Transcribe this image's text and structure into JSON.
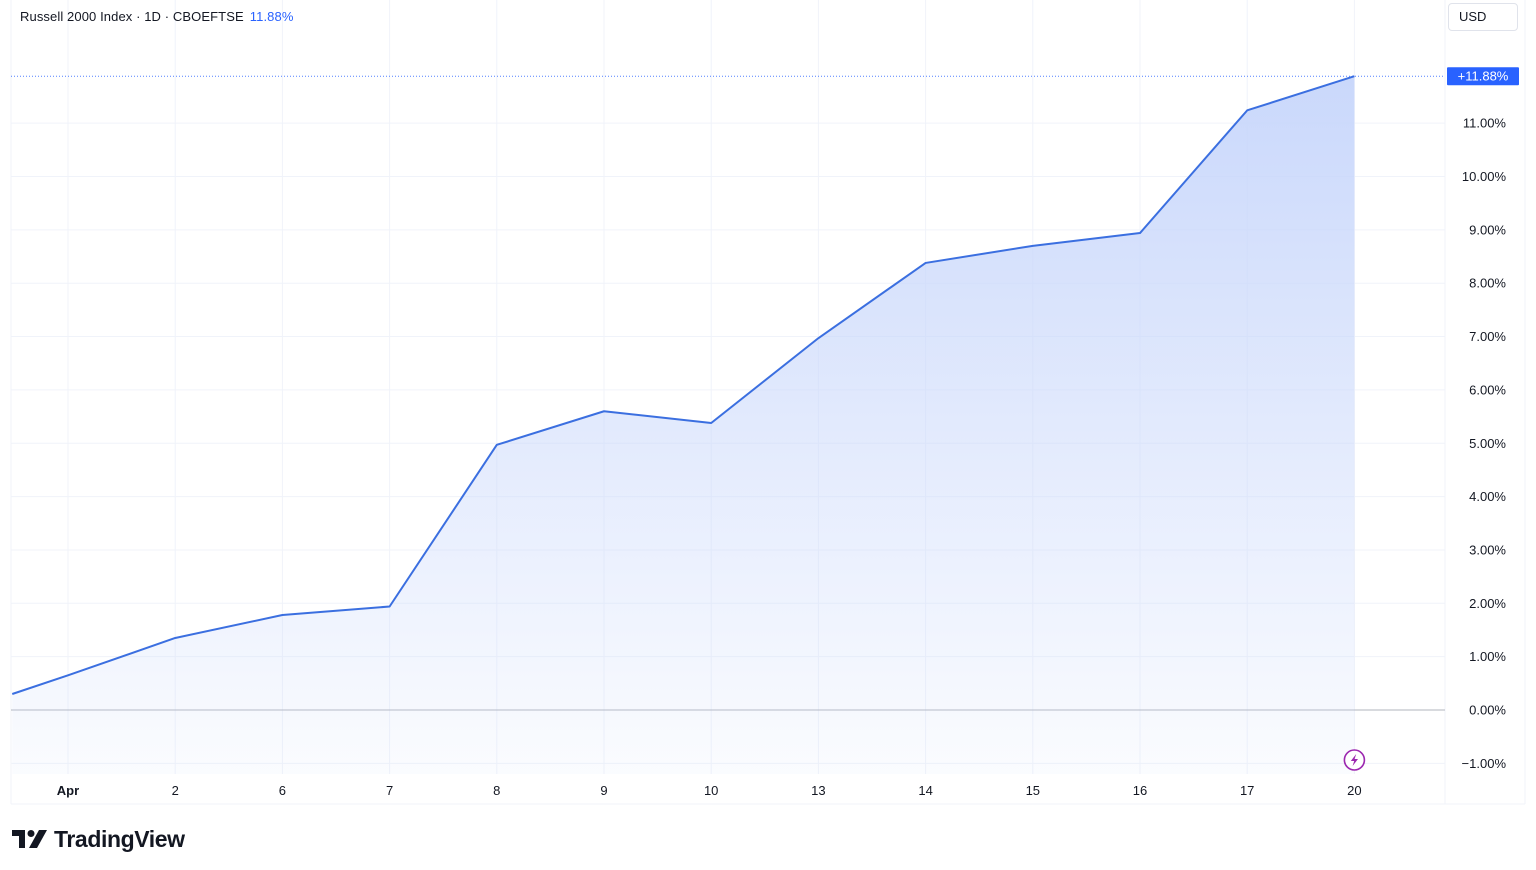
{
  "header": {
    "symbol_label": "Russell 2000 Index · 1D · CBOEFTSE",
    "change_label": "11.88%"
  },
  "currency": {
    "label": "USD"
  },
  "price_tag": {
    "label": "+11.88%"
  },
  "brand": {
    "name": "TradingView"
  },
  "colors": {
    "line": "#3b6fe0",
    "fill_top": "#c7d6fb",
    "accent": "#2962ff",
    "grid": "#f0f3fa",
    "zero_line": "#b2b5be",
    "alert_icon": "#9c27b0"
  },
  "icons": {
    "alert": "lightning-icon",
    "logo": "tradingview-logo"
  },
  "chart_data": {
    "type": "area",
    "title": "Russell 2000 Index · 1D · CBOEFTSE",
    "x_tick_labels": [
      "Apr",
      "2",
      "6",
      "7",
      "8",
      "9",
      "10",
      "13",
      "14",
      "15",
      "16",
      "17",
      "20"
    ],
    "y_tick_values": [
      -1,
      0,
      1,
      2,
      3,
      4,
      5,
      6,
      7,
      8,
      9,
      10,
      11
    ],
    "y_tick_labels": [
      "−1.00%",
      "0.00%",
      "1.00%",
      "2.00%",
      "3.00%",
      "4.00%",
      "5.00%",
      "6.00%",
      "7.00%",
      "8.00%",
      "9.00%",
      "10.00%",
      "11.00%"
    ],
    "ylim": [
      -1.5,
      12.4
    ],
    "y_unit": "%",
    "series": [
      {
        "x": [
          -0.52,
          0,
          1,
          2,
          3,
          4,
          5,
          6,
          7,
          8,
          9,
          10,
          11,
          12
        ],
        "values": [
          0.3,
          0.65,
          1.35,
          1.78,
          1.94,
          4.97,
          5.6,
          5.38,
          6.97,
          8.38,
          8.7,
          8.94,
          11.24,
          11.88
        ]
      }
    ],
    "last_value": 11.88,
    "grid": true,
    "baseline": 0
  }
}
